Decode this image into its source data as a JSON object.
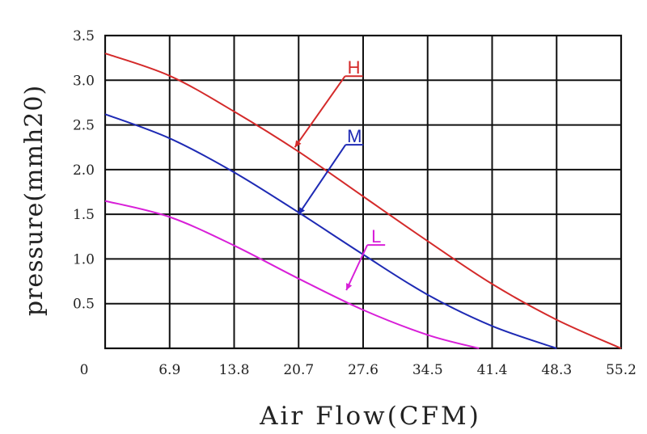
{
  "chart_data": {
    "type": "line",
    "xlabel": "Air Flow(CFM)",
    "ylabel": "pressure(mmh20)",
    "x_ticks": [
      "0",
      "6.9",
      "13.8",
      "20.7",
      "27.6",
      "34.5",
      "41.4",
      "48.3",
      "55.2"
    ],
    "y_ticks": [
      "0.5",
      "1.0",
      "1.5",
      "2.0",
      "2.5",
      "3.0",
      "3.5"
    ],
    "xlim": [
      0,
      55.2
    ],
    "ylim": [
      0,
      3.5
    ],
    "grid": true,
    "series": [
      {
        "name": "H",
        "color": "#d42a2a",
        "x": [
          0,
          6.9,
          13.8,
          20.7,
          27.6,
          34.5,
          41.4,
          48.3,
          55.2
        ],
        "y": [
          3.3,
          3.05,
          2.65,
          2.2,
          1.7,
          1.2,
          0.72,
          0.32,
          0.0
        ]
      },
      {
        "name": "M",
        "color": "#1e2ab4",
        "x": [
          0,
          6.9,
          13.8,
          20.7,
          27.6,
          34.5,
          41.4,
          48.3
        ],
        "y": [
          2.62,
          2.35,
          1.97,
          1.52,
          1.05,
          0.6,
          0.25,
          0.0
        ]
      },
      {
        "name": "L",
        "color": "#d81fd8",
        "x": [
          0,
          6.9,
          13.8,
          20.7,
          27.6,
          34.5,
          40.0
        ],
        "y": [
          1.65,
          1.47,
          1.15,
          0.78,
          0.43,
          0.15,
          0.0
        ]
      }
    ],
    "annotations": [
      {
        "label": "H",
        "series": "H",
        "target_x": 20.3,
        "target_y": 2.25
      },
      {
        "label": "M",
        "series": "M",
        "target_x": 20.7,
        "target_y": 1.5
      },
      {
        "label": "L",
        "series": "L",
        "target_x": 25.8,
        "target_y": 0.65
      }
    ]
  }
}
